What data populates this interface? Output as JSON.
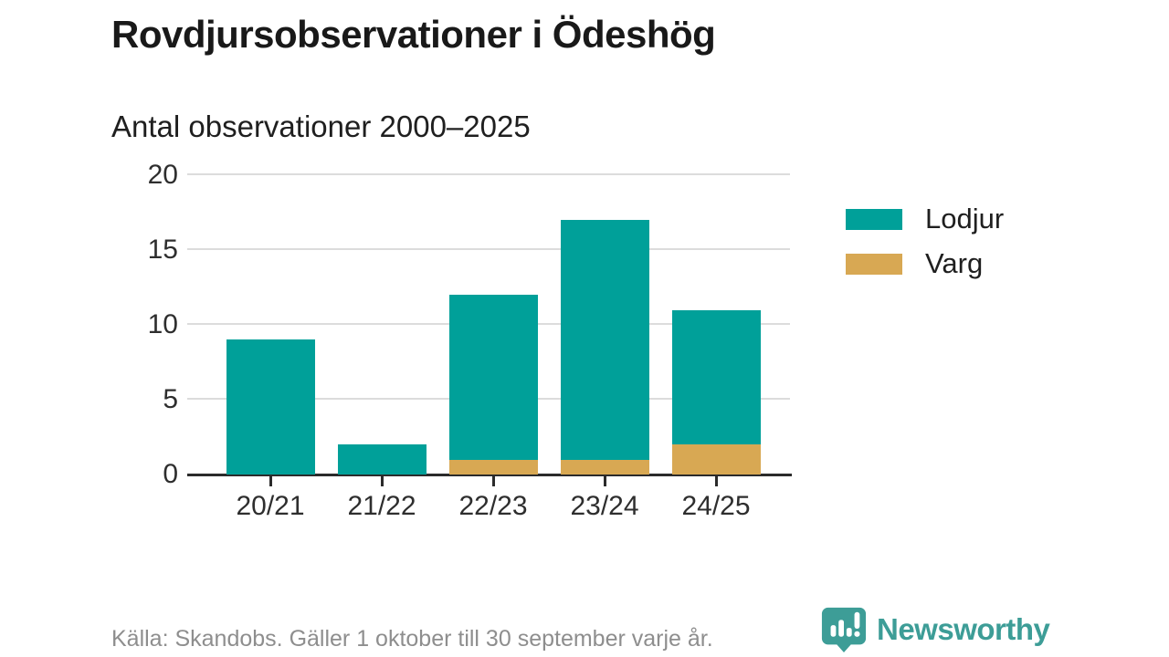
{
  "title": "Rovdjursobservationer i Ödeshög",
  "subtitle": "Antal observationer 2000–2025",
  "source": "Källa: Skandobs. Gäller 1 oktober till 30 september varje år.",
  "branding": {
    "wordmark": "Newsworthy",
    "icon": "newsworthy-speech-bubble-chart-icon",
    "brand_color": "#3d9d97"
  },
  "colors": {
    "lodjur": "#00a099",
    "varg": "#d8a853",
    "axis": "#2b2b2b",
    "grid": "#dcdcdc",
    "muted_text": "#8e8e8e"
  },
  "chart_data": {
    "type": "bar",
    "stacked": true,
    "title": "Rovdjursobservationer i Ödeshög",
    "subtitle": "Antal observationer 2000–2025",
    "categories": [
      "20/21",
      "21/22",
      "22/23",
      "23/24",
      "24/25"
    ],
    "series": [
      {
        "name": "Lodjur",
        "color": "#00a099",
        "values": [
          9,
          2,
          11,
          16,
          9
        ]
      },
      {
        "name": "Varg",
        "color": "#d8a853",
        "values": [
          0,
          0,
          1,
          1,
          2
        ]
      }
    ],
    "totals": [
      9,
      2,
      12,
      17,
      11
    ],
    "xlabel": "",
    "ylabel": "",
    "ylim": [
      0,
      20
    ],
    "yticks": [
      0,
      5,
      10,
      15,
      20
    ],
    "grid": true,
    "legend_position": "right"
  }
}
